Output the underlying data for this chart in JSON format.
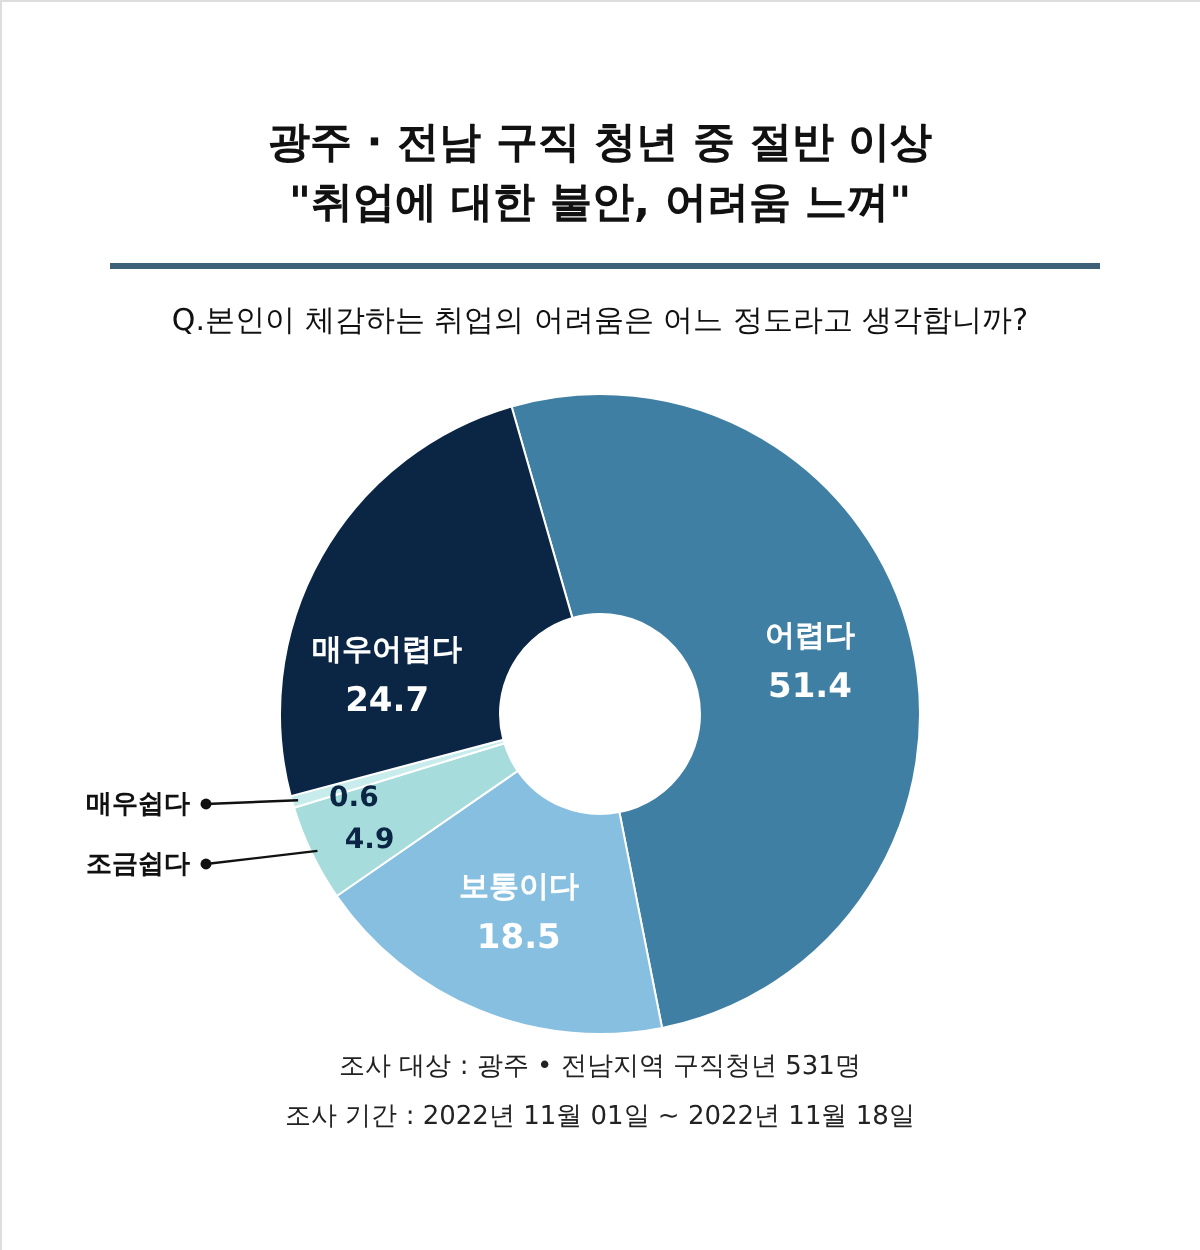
{
  "chart_data": {
    "type": "donut",
    "title": [
      "광주 · 전남 구직 청년 중 절반 이상",
      "\"취업에 대한 불안, 어려움 느껴\""
    ],
    "subtitle": "Q.본인이 체감하는 취업의 어려움은 어느 정도라고 생각합니까?",
    "categories": [
      "어렵다",
      "보통이다",
      "조금쉽다",
      "매우쉽다",
      "매우어렵다"
    ],
    "values": [
      51.4,
      18.5,
      4.9,
      0.6,
      24.7
    ],
    "colors": [
      "#3f7fa3",
      "#86bfe0",
      "#a6dcdc",
      "#c8ecec",
      "#0b2545"
    ],
    "data_labels": true,
    "annotations": [
      "조사 대상 : 광주 • 전남지역 구직청년 531명",
      "조사 기간 : 2022년 11월 01일 ~ 2022년 11월 18일"
    ]
  }
}
